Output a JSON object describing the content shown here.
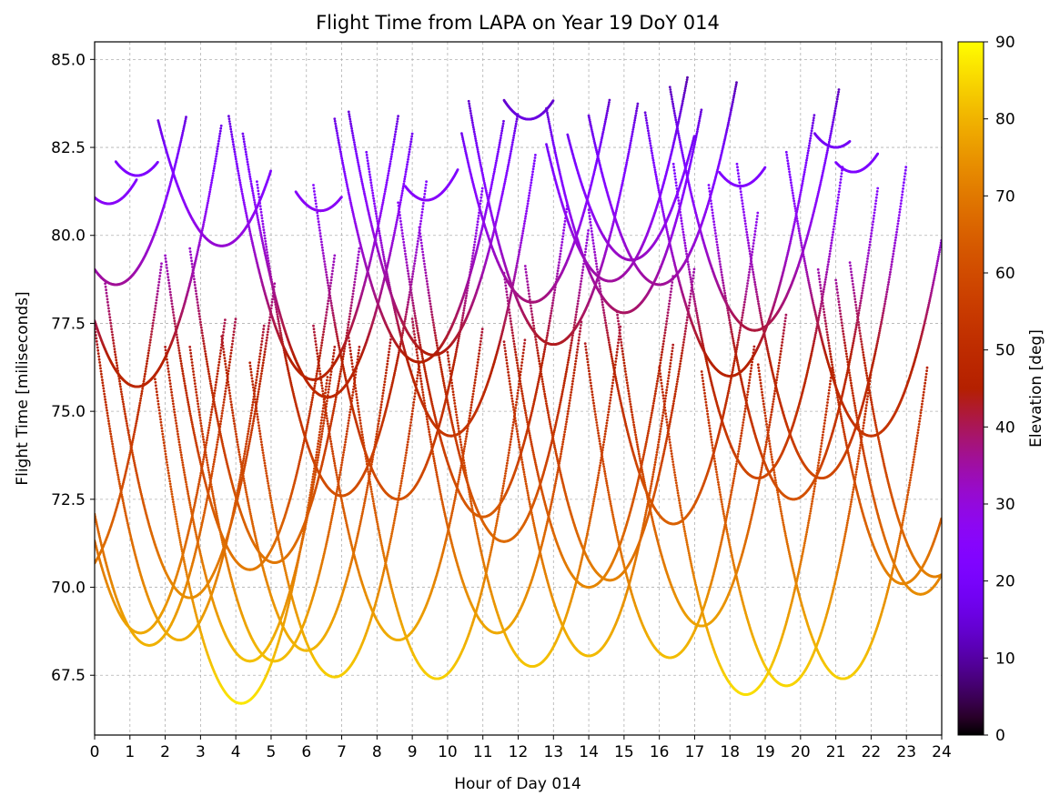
{
  "chart_data": {
    "type": "scatter",
    "title": "Flight Time from LAPA on Year 19 DoY 014",
    "xlabel": "Hour of Day 014",
    "ylabel": "Flight Time [miliseconds]",
    "xlim": [
      0,
      24
    ],
    "ylim": [
      65.8,
      85.5
    ],
    "x_ticks": [
      0,
      1,
      2,
      3,
      4,
      5,
      6,
      7,
      8,
      9,
      10,
      11,
      12,
      13,
      14,
      15,
      16,
      17,
      18,
      19,
      20,
      21,
      22,
      23,
      24
    ],
    "y_ticks": [
      "67.5",
      "70.0",
      "72.5",
      "75.0",
      "77.5",
      "80.0",
      "82.5",
      "85.0"
    ],
    "grid": true,
    "colorbar": {
      "label": "Elevation [deg]",
      "range": [
        0,
        90
      ],
      "ticks": [
        0,
        10,
        20,
        30,
        40,
        50,
        60,
        70,
        80,
        90
      ],
      "colormap": "gnuplot",
      "colors": [
        "#000000",
        "#4b0076",
        "#7f00ff",
        "#9b27c0",
        "#b2345a",
        "#c43a0b",
        "#d25a00",
        "#e08800",
        "#eeb400",
        "#ffff00"
      ]
    },
    "series_note": "satellite passes: parabolic arcs of flight time vs hour; color encodes elevation",
    "passes": [
      {
        "t0": 4.15,
        "ymin": 66.7,
        "a": 1.55,
        "t1": 1.7,
        "t2": 6.6
      },
      {
        "t0": 18.45,
        "ymin": 66.95,
        "a": 1.55,
        "t1": 16.0,
        "t2": 20.9
      },
      {
        "t0": 19.6,
        "ymin": 67.2,
        "a": 1.55,
        "t1": 17.2,
        "t2": 22.0
      },
      {
        "t0": 21.2,
        "ymin": 67.4,
        "a": 1.55,
        "t1": 18.8,
        "t2": 23.6
      },
      {
        "t0": 9.7,
        "ymin": 67.4,
        "a": 1.55,
        "t1": 7.2,
        "t2": 12.2
      },
      {
        "t0": 6.8,
        "ymin": 67.45,
        "a": 1.55,
        "t1": 4.4,
        "t2": 9.2
      },
      {
        "t0": 12.4,
        "ymin": 67.75,
        "a": 1.55,
        "t1": 10.0,
        "t2": 14.9
      },
      {
        "t0": 5.1,
        "ymin": 67.9,
        "a": 1.55,
        "t1": 2.7,
        "t2": 7.5
      },
      {
        "t0": 4.4,
        "ymin": 67.9,
        "a": 1.55,
        "t1": 2.0,
        "t2": 6.8
      },
      {
        "t0": 16.3,
        "ymin": 68.0,
        "a": 1.55,
        "t1": 13.9,
        "t2": 18.7
      },
      {
        "t0": 14.0,
        "ymin": 68.05,
        "a": 1.55,
        "t1": 11.6,
        "t2": 16.4
      },
      {
        "t0": 6.0,
        "ymin": 68.2,
        "a": 1.55,
        "t1": 3.6,
        "t2": 8.4
      },
      {
        "t0": 1.55,
        "ymin": 68.35,
        "a": 1.55,
        "t1": -0.9,
        "t2": 4.0
      },
      {
        "t0": 2.4,
        "ymin": 68.5,
        "a": 1.55,
        "t1": 0.0,
        "t2": 4.8
      },
      {
        "t0": 8.6,
        "ymin": 68.5,
        "a": 1.55,
        "t1": 6.2,
        "t2": 11.0
      },
      {
        "t0": 1.3,
        "ymin": 68.7,
        "a": 1.55,
        "t1": -1.1,
        "t2": 3.7
      },
      {
        "t0": 11.4,
        "ymin": 68.7,
        "a": 1.55,
        "t1": 9.0,
        "t2": 13.8
      },
      {
        "t0": 17.2,
        "ymin": 68.9,
        "a": 1.55,
        "t1": 14.8,
        "t2": 19.6
      },
      {
        "t0": 2.7,
        "ymin": 69.7,
        "a": 1.55,
        "t1": 0.3,
        "t2": 5.1
      },
      {
        "t0": 23.4,
        "ymin": 69.8,
        "a": 1.55,
        "t1": 21.0,
        "t2": 25.8
      },
      {
        "t0": 14.0,
        "ymin": 70.0,
        "a": 1.55,
        "t1": 11.6,
        "t2": 16.4
      },
      {
        "t0": 22.9,
        "ymin": 70.1,
        "a": 1.55,
        "t1": 20.5,
        "t2": 25.3
      },
      {
        "t0": 14.6,
        "ymin": 70.2,
        "a": 1.55,
        "t1": 12.2,
        "t2": 17.0
      },
      {
        "t0": 23.8,
        "ymin": 70.3,
        "a": 1.55,
        "t1": 21.4,
        "t2": 26.2
      },
      {
        "t0": -0.5,
        "ymin": 70.3,
        "a": 1.55,
        "t1": -2.9,
        "t2": 1.9
      },
      {
        "t0": 4.4,
        "ymin": 70.5,
        "a": 1.55,
        "t1": 2.0,
        "t2": 6.8
      },
      {
        "t0": 5.1,
        "ymin": 70.7,
        "a": 1.55,
        "t1": 2.7,
        "t2": 7.5
      },
      {
        "t0": 11.6,
        "ymin": 71.3,
        "a": 1.55,
        "t1": 9.2,
        "t2": 14.0
      },
      {
        "t0": 16.4,
        "ymin": 71.8,
        "a": 1.55,
        "t1": 14.0,
        "t2": 18.8
      },
      {
        "t0": 11.0,
        "ymin": 72.0,
        "a": 1.55,
        "t1": 8.6,
        "t2": 13.4
      },
      {
        "t0": 8.6,
        "ymin": 72.5,
        "a": 1.55,
        "t1": 6.2,
        "t2": 11.0
      },
      {
        "t0": 19.8,
        "ymin": 72.5,
        "a": 1.55,
        "t1": 17.4,
        "t2": 22.2
      },
      {
        "t0": 7.0,
        "ymin": 72.6,
        "a": 1.55,
        "t1": 4.6,
        "t2": 9.4
      },
      {
        "t0": 20.6,
        "ymin": 73.1,
        "a": 1.55,
        "t1": 18.2,
        "t2": 23.0
      },
      {
        "t0": 18.8,
        "ymin": 73.1,
        "a": 1.55,
        "t1": 16.4,
        "t2": 21.2
      },
      {
        "t0": 10.1,
        "ymin": 74.3,
        "a": 1.4,
        "t1": 7.7,
        "t2": 12.5
      },
      {
        "t0": 22.0,
        "ymin": 74.3,
        "a": 1.4,
        "t1": 19.6,
        "t2": 24.4
      },
      {
        "t0": 6.6,
        "ymin": 75.4,
        "a": 1.3,
        "t1": 4.2,
        "t2": 9.0
      },
      {
        "t0": 1.2,
        "ymin": 75.7,
        "a": 1.3,
        "t1": -1.2,
        "t2": 3.6
      },
      {
        "t0": 6.2,
        "ymin": 75.9,
        "a": 1.3,
        "t1": 3.8,
        "t2": 8.6
      },
      {
        "t0": 18.0,
        "ymin": 76.0,
        "a": 1.3,
        "t1": 15.6,
        "t2": 20.4
      },
      {
        "t0": 9.2,
        "ymin": 76.4,
        "a": 1.2,
        "t1": 6.8,
        "t2": 11.6
      },
      {
        "t0": 9.6,
        "ymin": 76.6,
        "a": 1.2,
        "t1": 7.2,
        "t2": 12.0
      },
      {
        "t0": 13.0,
        "ymin": 76.9,
        "a": 1.2,
        "t1": 10.6,
        "t2": 15.4
      },
      {
        "t0": 18.7,
        "ymin": 77.3,
        "a": 1.2,
        "t1": 16.3,
        "t2": 21.1
      },
      {
        "t0": 15.0,
        "ymin": 77.8,
        "a": 1.2,
        "t1": 12.8,
        "t2": 17.2
      },
      {
        "t0": 12.4,
        "ymin": 78.1,
        "a": 1.2,
        "t1": 10.4,
        "t2": 14.6
      },
      {
        "t0": 16.0,
        "ymin": 78.6,
        "a": 1.2,
        "t1": 14.0,
        "t2": 18.2
      },
      {
        "t0": 0.6,
        "ymin": 78.6,
        "a": 1.2,
        "t1": -1.4,
        "t2": 2.6
      },
      {
        "t0": 14.6,
        "ymin": 78.7,
        "a": 1.2,
        "t1": 12.8,
        "t2": 16.8
      },
      {
        "t0": 15.2,
        "ymin": 79.3,
        "a": 1.1,
        "t1": 13.4,
        "t2": 17.0
      },
      {
        "t0": 3.6,
        "ymin": 79.7,
        "a": 1.1,
        "t1": 1.8,
        "t2": 5.0
      },
      {
        "t0": 6.4,
        "ymin": 80.7,
        "a": 1.1,
        "t1": 5.7,
        "t2": 7.0
      },
      {
        "t0": 0.4,
        "ymin": 80.9,
        "a": 1.1,
        "t1": 0.0,
        "t2": 1.2
      },
      {
        "t0": 9.4,
        "ymin": 81.0,
        "a": 1.1,
        "t1": 8.8,
        "t2": 10.3
      },
      {
        "t0": 18.3,
        "ymin": 81.4,
        "a": 1.1,
        "t1": 17.7,
        "t2": 19.0
      },
      {
        "t0": 1.2,
        "ymin": 81.7,
        "a": 1.1,
        "t1": 0.6,
        "t2": 1.8
      },
      {
        "t0": 21.5,
        "ymin": 81.8,
        "a": 1.1,
        "t1": 21.0,
        "t2": 22.2
      },
      {
        "t0": 21.0,
        "ymin": 82.5,
        "a": 1.1,
        "t1": 20.4,
        "t2": 21.4
      },
      {
        "t0": 12.3,
        "ymin": 83.3,
        "a": 1.1,
        "t1": 11.6,
        "t2": 13.0
      }
    ]
  }
}
